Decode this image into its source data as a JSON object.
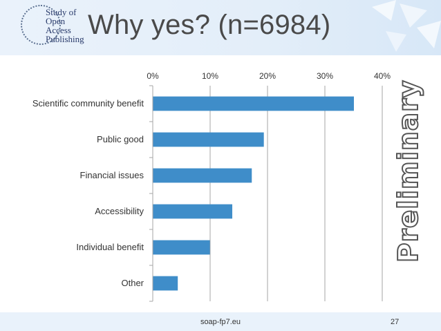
{
  "slide": {
    "title": "Why yes? (n=6984)",
    "watermark": "Preliminary",
    "footer_url": "soap-fp7.eu",
    "page_number": "27"
  },
  "logo": {
    "text": "Study of\nOpen\nAccess\nPublishing"
  },
  "colors": {
    "bar": "#3f8dc9",
    "axis": "#a6a6a6",
    "text": "#333333",
    "title": "#4a4a4a"
  },
  "chart_data": {
    "type": "bar",
    "orientation": "horizontal",
    "title": "",
    "xlabel": "",
    "ylabel": "",
    "categories": [
      "Scientific community benefit",
      "Public good",
      "Financial issues",
      "Accessibility",
      "Individual benefit",
      "Other"
    ],
    "values": [
      35.0,
      19.3,
      17.2,
      13.8,
      9.9,
      4.3
    ],
    "unit": "%",
    "xlim": [
      0,
      40
    ],
    "x_ticks": [
      "0%",
      "10%",
      "20%",
      "30%",
      "40%"
    ],
    "x_axis_position": "top",
    "grid": true
  }
}
